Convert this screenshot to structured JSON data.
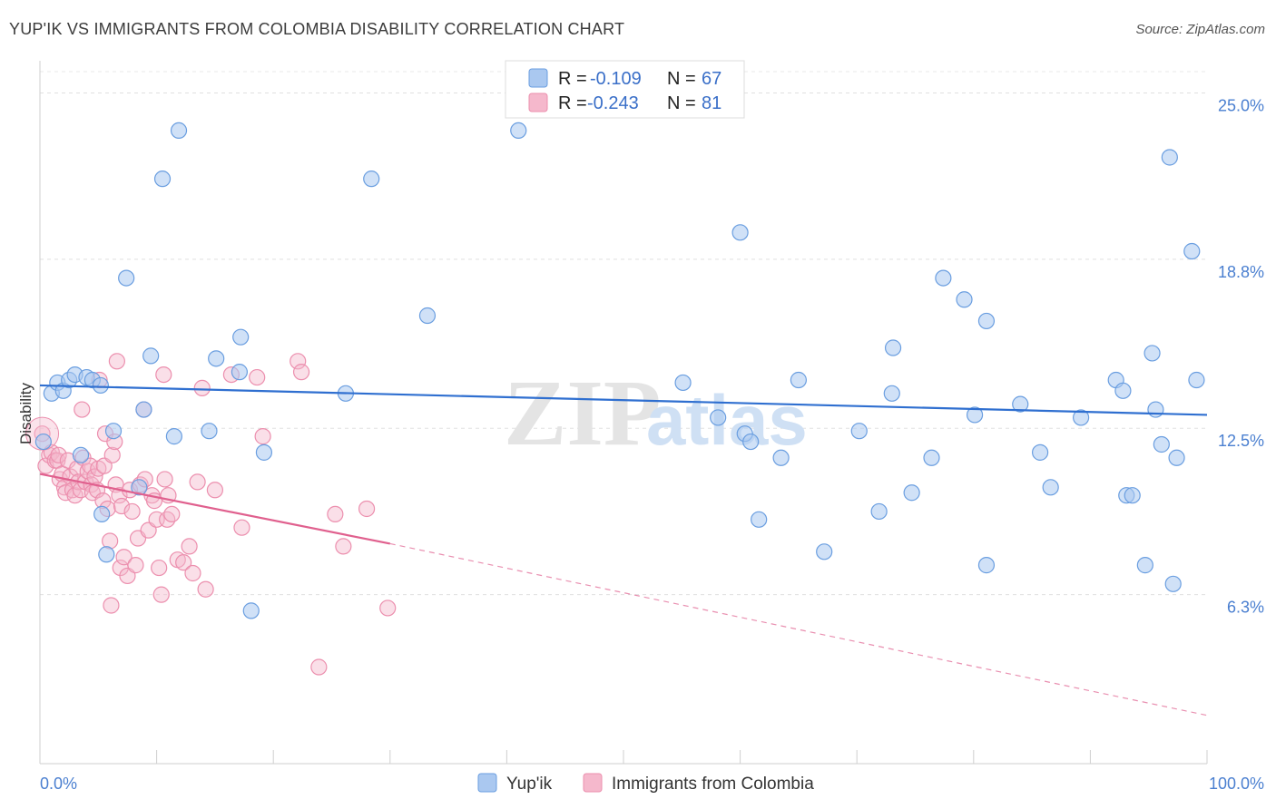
{
  "chart_data": {
    "type": "scatter",
    "title": "YUP'IK VS IMMIGRANTS FROM COLOMBIA DISABILITY CORRELATION CHART",
    "source": "Source: ZipAtlas.com",
    "ylabel": "Disability",
    "xlabel": "",
    "xlim": [
      0,
      100
    ],
    "ylim": [
      0,
      26.2
    ],
    "x_tick_labels": [
      "0.0%",
      "100.0%"
    ],
    "y_ticks": [
      {
        "value": 25.0,
        "label": "25.0%"
      },
      {
        "value": 18.8,
        "label": "18.8%"
      },
      {
        "value": 12.5,
        "label": "12.5%"
      },
      {
        "value": 6.3,
        "label": "6.3%"
      }
    ],
    "legend": [
      {
        "series": "Yup'ik",
        "r_label": "R =",
        "r_value": "-0.109",
        "n_label": "N =",
        "n_value": "67"
      },
      {
        "series": "Immigrants from Colombia",
        "r_label": "R =",
        "r_value": "-0.243",
        "n_label": "N =",
        "n_value": "81"
      }
    ],
    "colors": {
      "yupik_fill": "#aac8f0",
      "yupik_stroke": "#6a9ee0",
      "yupik_line": "#2f6fd0",
      "colombia_fill": "#f5b8cc",
      "colombia_stroke": "#ec8fae",
      "colombia_line": "#e0608e",
      "axis_label": "#4a7fd0"
    },
    "series": [
      {
        "name": "Yup'ik",
        "trend": {
          "x0": 0,
          "y0": 14.1,
          "x1": 100,
          "y1": 13.0
        },
        "points": [
          [
            0.3,
            12.0
          ],
          [
            1.0,
            13.8
          ],
          [
            1.5,
            14.2
          ],
          [
            2.0,
            13.9
          ],
          [
            2.5,
            14.3
          ],
          [
            3.0,
            14.5
          ],
          [
            3.5,
            11.5
          ],
          [
            4.0,
            14.4
          ],
          [
            4.5,
            14.3
          ],
          [
            5.2,
            14.1
          ],
          [
            5.3,
            9.3
          ],
          [
            5.7,
            7.8
          ],
          [
            6.3,
            12.4
          ],
          [
            7.4,
            18.1
          ],
          [
            8.5,
            10.3
          ],
          [
            8.9,
            13.2
          ],
          [
            9.5,
            15.2
          ],
          [
            10.5,
            21.8
          ],
          [
            11.5,
            12.2
          ],
          [
            11.9,
            23.6
          ],
          [
            14.5,
            12.4
          ],
          [
            15.1,
            15.1
          ],
          [
            17.1,
            14.6
          ],
          [
            17.2,
            15.9
          ],
          [
            18.1,
            5.7
          ],
          [
            19.2,
            11.6
          ],
          [
            26.2,
            13.8
          ],
          [
            28.4,
            21.8
          ],
          [
            33.2,
            16.7
          ],
          [
            41.0,
            23.6
          ],
          [
            55.1,
            14.2
          ],
          [
            58.1,
            12.9
          ],
          [
            60.0,
            19.8
          ],
          [
            60.4,
            12.3
          ],
          [
            60.9,
            12.0
          ],
          [
            61.6,
            9.1
          ],
          [
            63.5,
            11.4
          ],
          [
            65.0,
            14.3
          ],
          [
            67.2,
            7.9
          ],
          [
            70.2,
            12.4
          ],
          [
            71.9,
            9.4
          ],
          [
            73.0,
            13.8
          ],
          [
            73.1,
            15.5
          ],
          [
            74.7,
            10.1
          ],
          [
            76.4,
            11.4
          ],
          [
            77.4,
            18.1
          ],
          [
            79.2,
            17.3
          ],
          [
            80.1,
            13.0
          ],
          [
            81.1,
            7.4
          ],
          [
            81.1,
            16.5
          ],
          [
            84.0,
            13.4
          ],
          [
            85.7,
            11.6
          ],
          [
            86.6,
            10.3
          ],
          [
            89.2,
            12.9
          ],
          [
            92.2,
            14.3
          ],
          [
            92.8,
            13.9
          ],
          [
            93.1,
            10.0
          ],
          [
            93.6,
            10.0
          ],
          [
            94.7,
            7.4
          ],
          [
            95.3,
            15.3
          ],
          [
            95.6,
            13.2
          ],
          [
            96.1,
            11.9
          ],
          [
            96.8,
            22.6
          ],
          [
            97.1,
            6.7
          ],
          [
            97.4,
            11.4
          ],
          [
            98.7,
            19.1
          ],
          [
            99.1,
            14.3
          ]
        ]
      },
      {
        "name": "Immigrants from Colombia",
        "trend": {
          "x0": 0,
          "y0": 10.8,
          "x1": 30,
          "y1": 8.2,
          "dashed_x1": 100,
          "dashed_y1": 1.8
        },
        "points": [
          [
            0.2,
            12.3
          ],
          [
            0.5,
            11.1
          ],
          [
            0.8,
            11.5
          ],
          [
            1.0,
            11.6
          ],
          [
            1.3,
            11.3
          ],
          [
            1.5,
            11.3
          ],
          [
            1.6,
            11.5
          ],
          [
            1.7,
            10.6
          ],
          [
            1.9,
            10.8
          ],
          [
            2.1,
            10.3
          ],
          [
            2.2,
            10.1
          ],
          [
            2.4,
            11.3
          ],
          [
            2.6,
            10.7
          ],
          [
            2.8,
            10.2
          ],
          [
            3.0,
            10.0
          ],
          [
            3.2,
            11.0
          ],
          [
            3.3,
            10.5
          ],
          [
            3.5,
            10.2
          ],
          [
            3.6,
            13.2
          ],
          [
            3.7,
            11.4
          ],
          [
            3.9,
            10.5
          ],
          [
            4.1,
            10.9
          ],
          [
            4.3,
            11.1
          ],
          [
            4.4,
            10.4
          ],
          [
            4.5,
            10.1
          ],
          [
            4.7,
            10.7
          ],
          [
            4.9,
            10.2
          ],
          [
            5.0,
            11.0
          ],
          [
            5.1,
            14.3
          ],
          [
            5.4,
            9.8
          ],
          [
            5.5,
            11.1
          ],
          [
            5.6,
            12.3
          ],
          [
            5.8,
            9.5
          ],
          [
            6.0,
            8.3
          ],
          [
            6.1,
            5.9
          ],
          [
            6.2,
            11.5
          ],
          [
            6.4,
            12.0
          ],
          [
            6.5,
            10.4
          ],
          [
            6.6,
            15.0
          ],
          [
            6.8,
            10.0
          ],
          [
            6.9,
            7.3
          ],
          [
            7.0,
            9.6
          ],
          [
            7.2,
            7.7
          ],
          [
            7.5,
            7.0
          ],
          [
            7.7,
            10.2
          ],
          [
            7.9,
            9.4
          ],
          [
            8.2,
            7.4
          ],
          [
            8.4,
            8.4
          ],
          [
            8.6,
            10.4
          ],
          [
            8.9,
            13.2
          ],
          [
            9.0,
            10.6
          ],
          [
            9.3,
            8.7
          ],
          [
            9.6,
            10.0
          ],
          [
            9.8,
            9.8
          ],
          [
            10.0,
            9.1
          ],
          [
            10.2,
            7.3
          ],
          [
            10.4,
            6.3
          ],
          [
            10.6,
            14.5
          ],
          [
            10.7,
            10.6
          ],
          [
            10.9,
            9.1
          ],
          [
            11.0,
            10.0
          ],
          [
            11.3,
            9.3
          ],
          [
            11.8,
            7.6
          ],
          [
            12.3,
            7.5
          ],
          [
            12.8,
            8.1
          ],
          [
            13.1,
            7.1
          ],
          [
            13.9,
            14.0
          ],
          [
            14.2,
            6.5
          ],
          [
            16.4,
            14.5
          ],
          [
            17.3,
            8.8
          ],
          [
            18.6,
            14.4
          ],
          [
            19.1,
            12.2
          ],
          [
            22.1,
            15.0
          ],
          [
            22.4,
            14.6
          ],
          [
            23.9,
            3.6
          ],
          [
            25.3,
            9.3
          ],
          [
            26.0,
            8.1
          ],
          [
            28.0,
            9.5
          ],
          [
            29.8,
            5.8
          ],
          [
            13.5,
            10.5
          ],
          [
            15.0,
            10.2
          ]
        ]
      }
    ]
  }
}
